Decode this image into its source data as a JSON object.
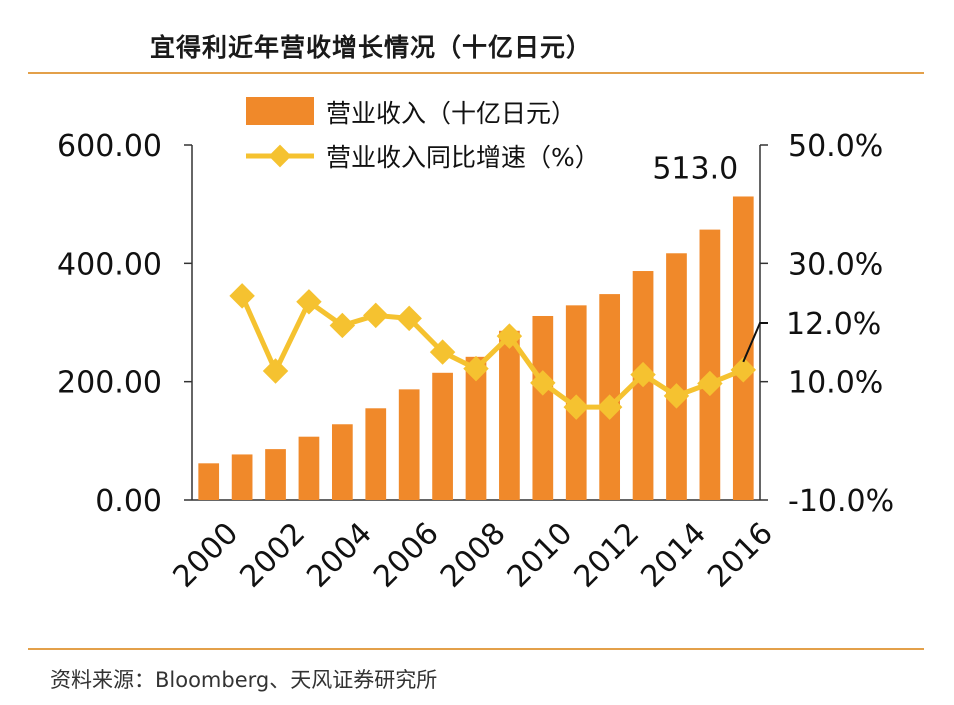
{
  "title": "宜得利近年营收增长情况（十亿日元）",
  "source": "资料来源：Bloomberg、天风证券研究所",
  "colors": {
    "bar": "#f0892a",
    "line": "#f5c230",
    "rule": "#e3a04a",
    "axis": "#333333"
  },
  "chart_data": {
    "type": "bar+line",
    "categories": [
      "2000",
      "2001",
      "2002",
      "2003",
      "2004",
      "2005",
      "2006",
      "2007",
      "2008",
      "2009",
      "2010",
      "2011",
      "2012",
      "2013",
      "2014",
      "2015",
      "2016"
    ],
    "x_tick_labels": [
      "2000",
      "2002",
      "2004",
      "2006",
      "2008",
      "2010",
      "2012",
      "2014",
      "2016"
    ],
    "series": [
      {
        "name": "营业收入（十亿日元）",
        "type": "bar",
        "axis": "left",
        "values": [
          62,
          77,
          86,
          107,
          128,
          155,
          187,
          215,
          242,
          286,
          311,
          329,
          348,
          387,
          417,
          457,
          513
        ]
      },
      {
        "name": "营业收入同比增速（%）",
        "type": "line",
        "axis": "right",
        "values": [
          null,
          24.5,
          11.8,
          23.5,
          19.5,
          21.2,
          20.7,
          15.0,
          12.2,
          17.7,
          9.8,
          5.7,
          5.7,
          11.2,
          7.6,
          9.7,
          12.0
        ]
      }
    ],
    "left_axis": {
      "min": 0,
      "max": 600,
      "ticks": [
        "0.00",
        "200.00",
        "400.00",
        "600.00"
      ],
      "tick_values": [
        0,
        200,
        400,
        600
      ]
    },
    "right_axis": {
      "min": -10,
      "max": 50,
      "ticks": [
        "-10.0%",
        "10.0%",
        "30.0%",
        "50.0%"
      ],
      "tick_values": [
        -10,
        10,
        30,
        50
      ]
    },
    "annotations": [
      {
        "text": "513.0",
        "target": "bar",
        "index": 16
      },
      {
        "text": "12.0%",
        "target": "line",
        "index": 16
      }
    ],
    "legend": {
      "placement": "top-center"
    },
    "grid": false
  }
}
